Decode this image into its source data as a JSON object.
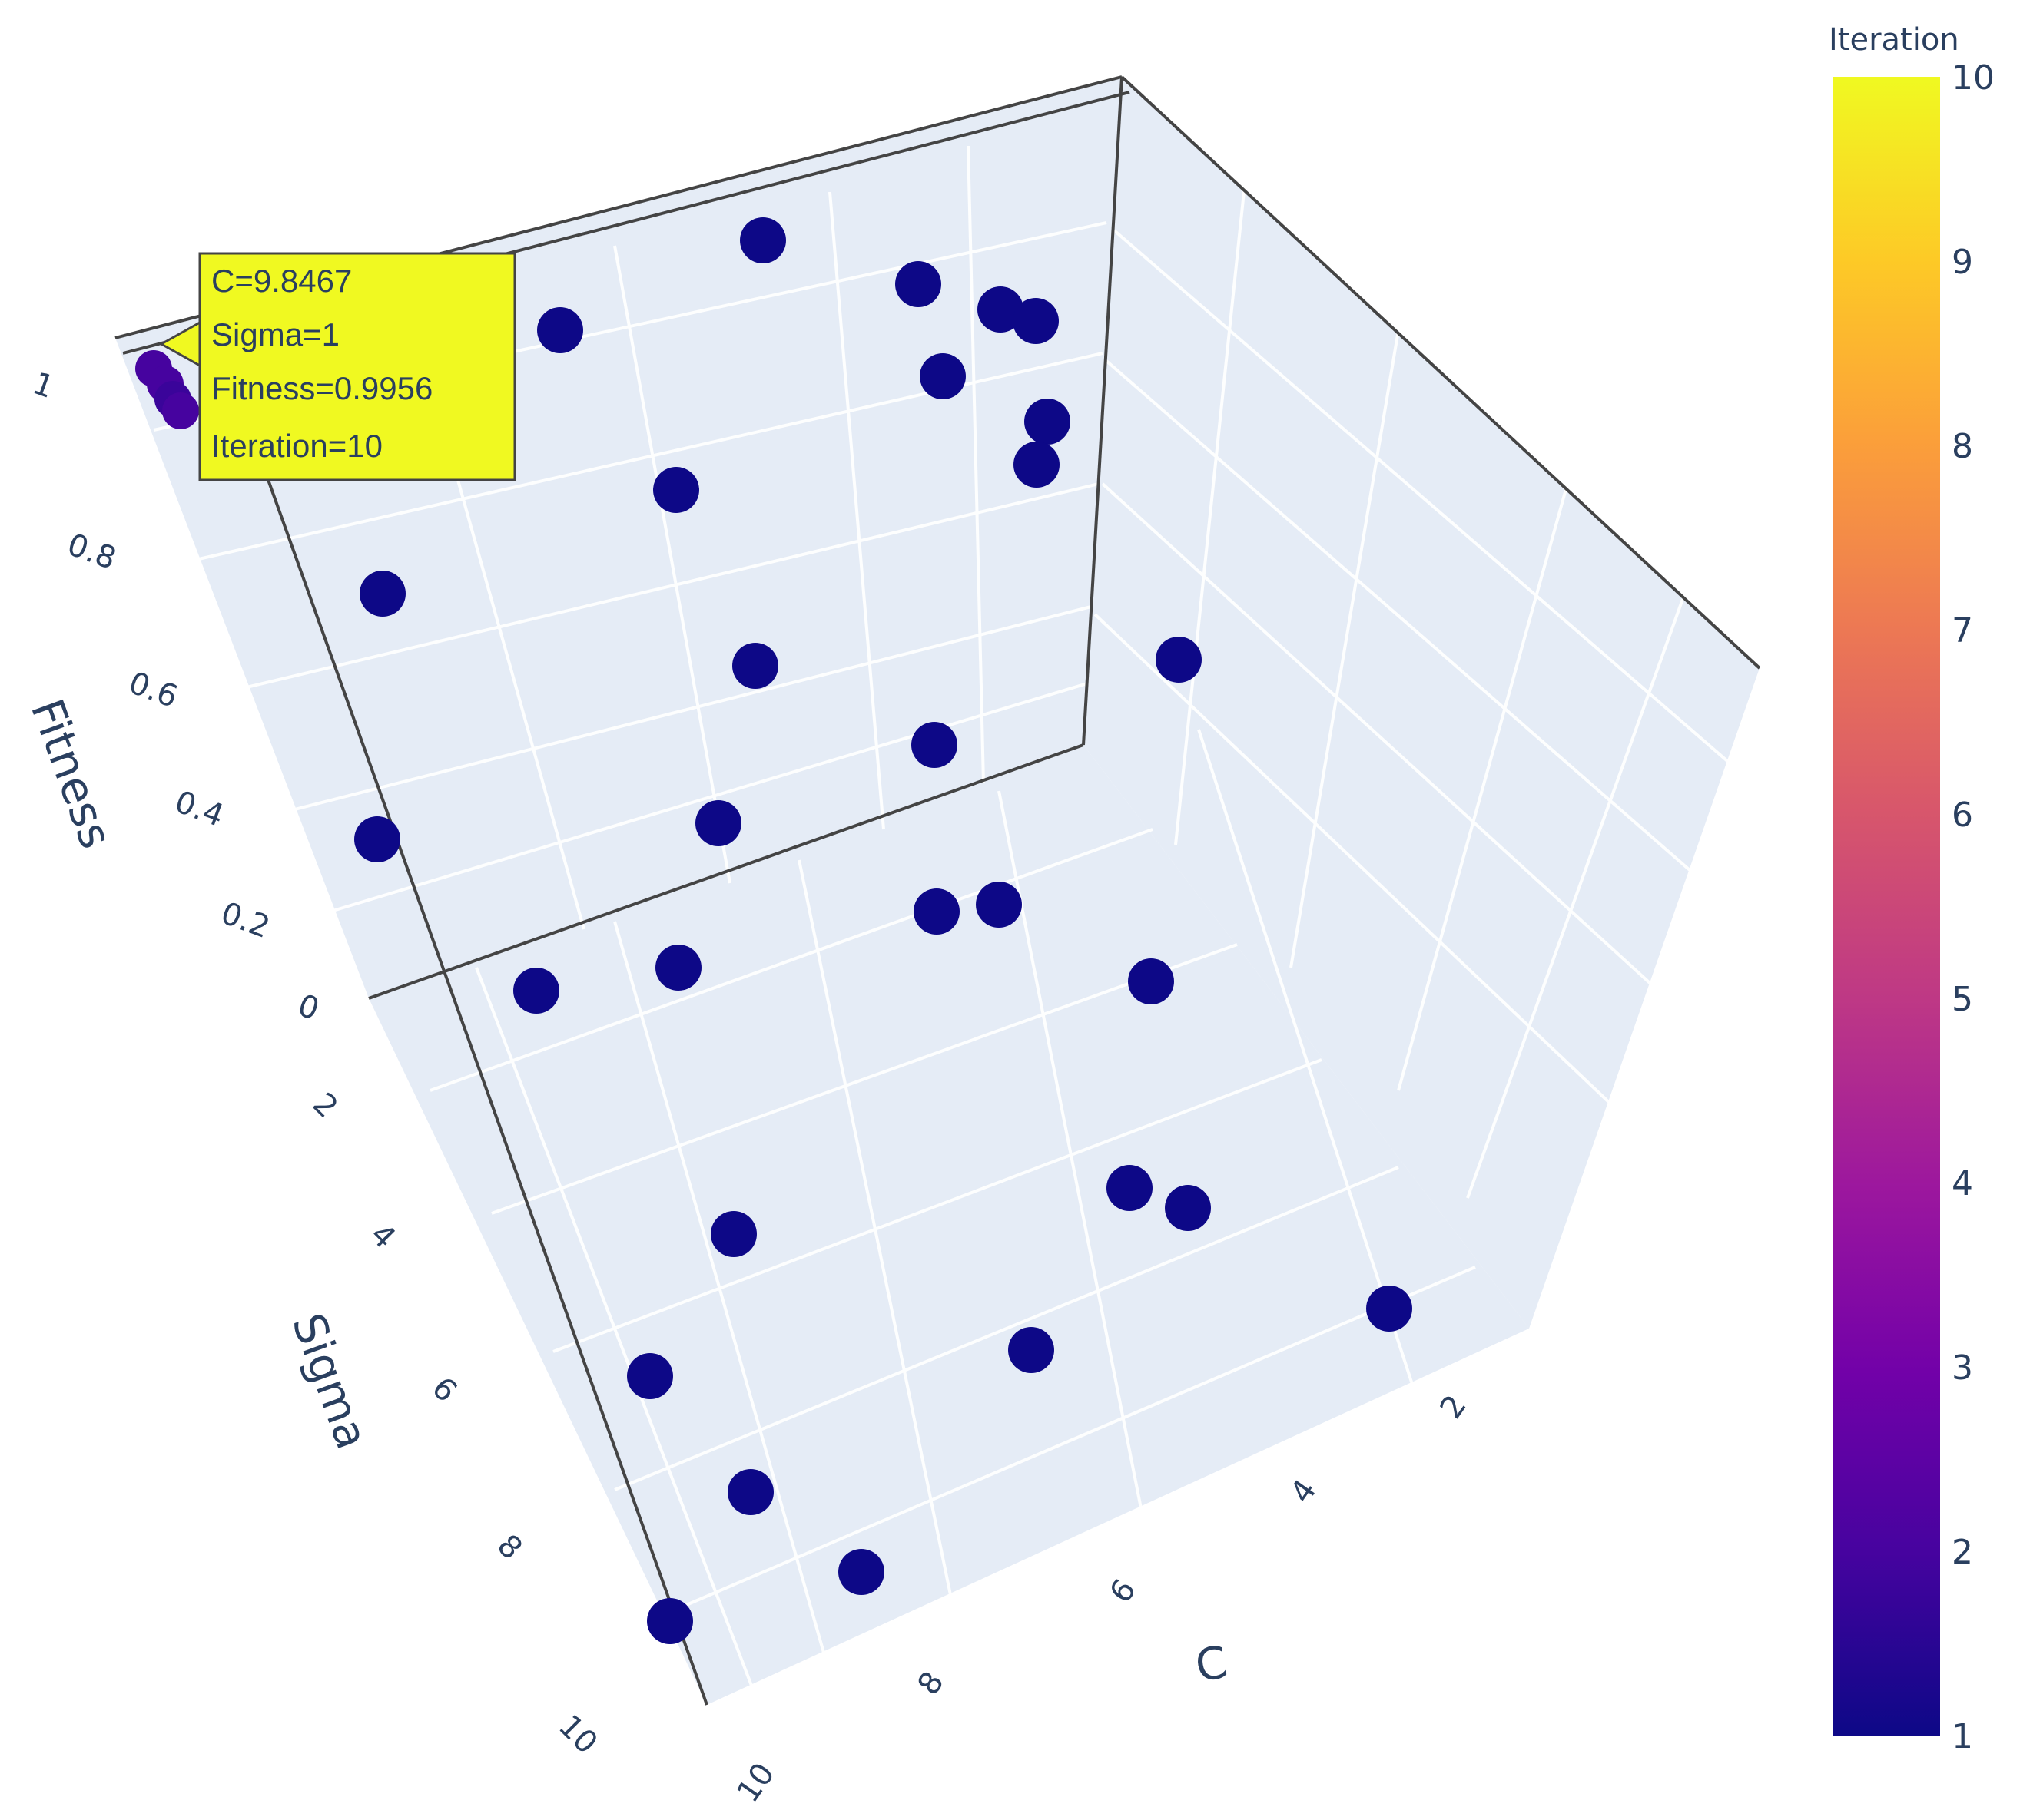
{
  "chart_data": {
    "type": "scatter",
    "x_label": "C",
    "y_label": "Sigma",
    "z_label": "Fitness",
    "x_ticks": [
      "2",
      "4",
      "6",
      "8",
      "10"
    ],
    "y_ticks": [
      "2",
      "4",
      "6",
      "8",
      "10"
    ],
    "z_ticks": [
      "0",
      "0.2",
      "0.4",
      "0.6",
      "0.8",
      "1"
    ],
    "colorbar": {
      "title": "Iteration",
      "ticks": [
        "1",
        "2",
        "3",
        "4",
        "5",
        "6",
        "7",
        "8",
        "9",
        "10"
      ],
      "range": [
        1,
        10
      ],
      "colorscale": [
        "#0d0887",
        "#46039f",
        "#7201a8",
        "#9c179e",
        "#bd3786",
        "#d8576b",
        "#ed7953",
        "#fb9f3a",
        "#fdca26",
        "#f0f921"
      ]
    },
    "marker_color": "#0d0887",
    "points_note_iteration": 1,
    "hover": {
      "C": "9.8467",
      "Sigma": "1",
      "Fitness": "0.9956",
      "Iteration": "10",
      "lines": [
        "C=9.8467",
        "Sigma=1",
        "Fitness=0.9956",
        "Iteration=10"
      ],
      "background": "#f0f921"
    },
    "background": "#e5ecf6"
  }
}
